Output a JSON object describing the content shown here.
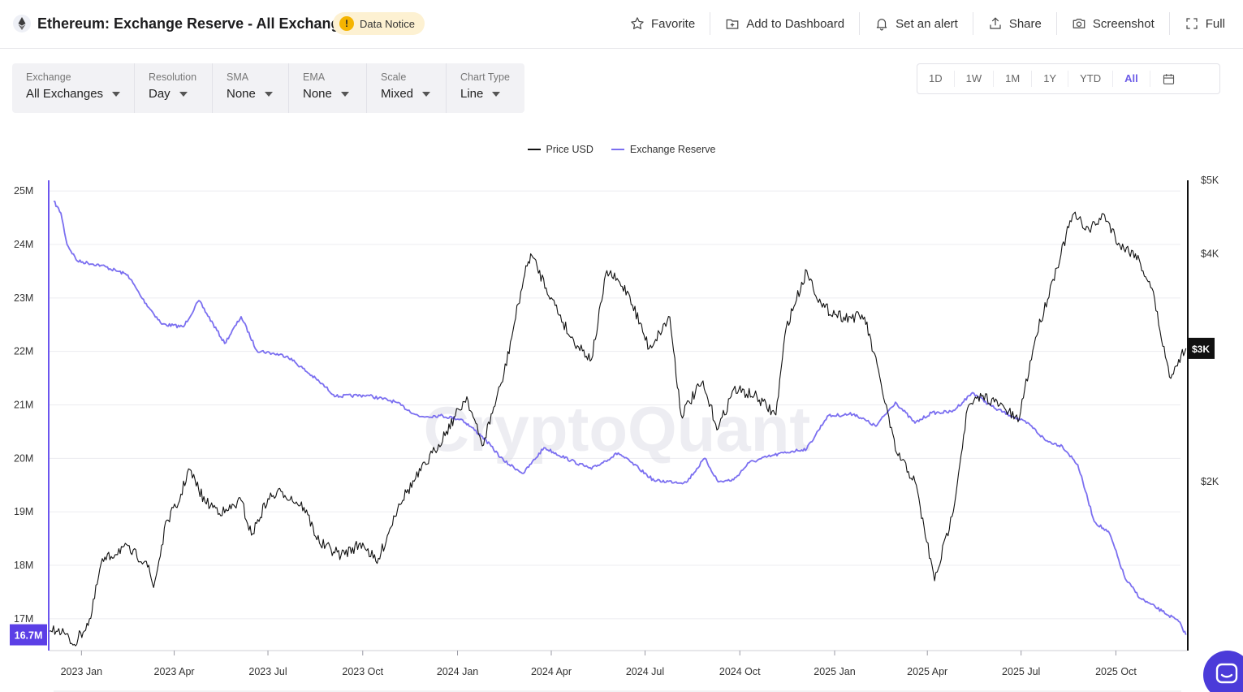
{
  "header": {
    "title": "Ethereum: Exchange Reserve - All Exchanges",
    "notice": "Data Notice",
    "notice_icon": "!",
    "actions": {
      "favorite": "Favorite",
      "add_to_dashboard": "Add to Dashboard",
      "set_alert": "Set an alert",
      "share": "Share",
      "screenshot": "Screenshot",
      "full": "Full"
    }
  },
  "controls": [
    {
      "label": "Exchange",
      "value": "All Exchanges"
    },
    {
      "label": "Resolution",
      "value": "Day"
    },
    {
      "label": "SMA",
      "value": "None"
    },
    {
      "label": "EMA",
      "value": "None"
    },
    {
      "label": "Scale",
      "value": "Mixed"
    },
    {
      "label": "Chart Type",
      "value": "Line"
    }
  ],
  "ranges": [
    "1D",
    "1W",
    "1M",
    "1Y",
    "YTD",
    "All"
  ],
  "active_range": "All",
  "watermark": "CryptoQuant",
  "colors": {
    "price": "#111111",
    "reserve": "#7b6ff0",
    "reserve_badge": "#5b3fe6",
    "price_badge": "#111111"
  },
  "chart_data": {
    "type": "line",
    "x_ticks": [
      "2023 Jan",
      "2023 Apr",
      "2023 Jul",
      "2023 Oct",
      "2024 Jan",
      "2024 Apr",
      "2024 Jul",
      "2024 Oct",
      "2025 Jan",
      "2025 Apr",
      "2025 Jul",
      "2025 Oct"
    ],
    "x_tick_dates": [
      "2023-01-01",
      "2023-04-01",
      "2023-07-01",
      "2023-10-01",
      "2024-01-01",
      "2024-04-01",
      "2024-07-01",
      "2024-10-01",
      "2025-01-01",
      "2025-04-01",
      "2025-07-01",
      "2025-10-01"
    ],
    "x_range": [
      "2022-12-01",
      "2025-12-09"
    ],
    "legend": [
      "Price USD",
      "Exchange Reserve"
    ],
    "legend_position": "top-center",
    "left_axis": {
      "ticks": [
        "25M",
        "24M",
        "23M",
        "22M",
        "21M",
        "20M",
        "19M",
        "18M",
        "17M"
      ],
      "tick_values": [
        25000000,
        24000000,
        23000000,
        22000000,
        21000000,
        20000000,
        19000000,
        18000000,
        17000000
      ],
      "range": [
        16420000,
        25200000
      ],
      "current_label": "16.7M",
      "current_value": 16700000
    },
    "right_axis": {
      "scale": "log",
      "ticks": [
        "$5K",
        "$4K",
        "$2K"
      ],
      "tick_values": [
        5000,
        4000,
        2000
      ],
      "range": [
        1200,
        5000
      ],
      "current_label": "$3K",
      "current_value": 3000
    },
    "grid": true,
    "series": [
      {
        "name": "Exchange Reserve",
        "axis": "left",
        "color": "#7b6ff0",
        "points": [
          [
            "2022-12-05",
            24810000
          ],
          [
            "2022-12-12",
            24590000
          ],
          [
            "2022-12-18",
            24000000
          ],
          [
            "2022-12-28",
            23690000
          ],
          [
            "2023-01-20",
            23610000
          ],
          [
            "2023-02-15",
            23430000
          ],
          [
            "2023-03-01",
            22990000
          ],
          [
            "2023-03-20",
            22510000
          ],
          [
            "2023-04-10",
            22460000
          ],
          [
            "2023-04-25",
            22950000
          ],
          [
            "2023-05-20",
            22150000
          ],
          [
            "2023-06-05",
            22650000
          ],
          [
            "2023-06-20",
            22020000
          ],
          [
            "2023-07-20",
            21910000
          ],
          [
            "2023-08-20",
            21430000
          ],
          [
            "2023-09-05",
            21160000
          ],
          [
            "2023-10-05",
            21180000
          ],
          [
            "2023-11-01",
            21060000
          ],
          [
            "2023-11-25",
            20780000
          ],
          [
            "2023-12-15",
            20800000
          ],
          [
            "2024-01-05",
            20730000
          ],
          [
            "2024-01-25",
            20410000
          ],
          [
            "2024-02-15",
            19950000
          ],
          [
            "2024-03-05",
            19720000
          ],
          [
            "2024-03-25",
            20200000
          ],
          [
            "2024-04-20",
            19960000
          ],
          [
            "2024-05-10",
            19800000
          ],
          [
            "2024-06-05",
            20100000
          ],
          [
            "2024-06-25",
            19810000
          ],
          [
            "2024-07-10",
            19580000
          ],
          [
            "2024-08-10",
            19550000
          ],
          [
            "2024-08-28",
            20000000
          ],
          [
            "2024-09-10",
            19560000
          ],
          [
            "2024-09-25",
            19600000
          ],
          [
            "2024-10-10",
            19920000
          ],
          [
            "2024-11-01",
            20050000
          ],
          [
            "2024-11-20",
            20130000
          ],
          [
            "2024-12-05",
            20180000
          ],
          [
            "2024-12-25",
            20790000
          ],
          [
            "2025-01-20",
            20830000
          ],
          [
            "2025-02-10",
            20600000
          ],
          [
            "2025-03-01",
            21050000
          ],
          [
            "2025-03-20",
            20660000
          ],
          [
            "2025-04-05",
            20850000
          ],
          [
            "2025-04-25",
            20870000
          ],
          [
            "2025-05-15",
            21230000
          ],
          [
            "2025-06-05",
            20940000
          ],
          [
            "2025-06-25",
            20770000
          ],
          [
            "2025-07-10",
            20620000
          ],
          [
            "2025-07-25",
            20330000
          ],
          [
            "2025-08-10",
            20230000
          ],
          [
            "2025-08-25",
            19880000
          ],
          [
            "2025-09-10",
            18820000
          ],
          [
            "2025-09-25",
            18590000
          ],
          [
            "2025-10-10",
            17750000
          ],
          [
            "2025-10-25",
            17380000
          ],
          [
            "2025-11-15",
            17140000
          ],
          [
            "2025-12-01",
            16950000
          ],
          [
            "2025-12-08",
            16700000
          ]
        ]
      },
      {
        "name": "Price USD",
        "axis": "right",
        "color": "#111111",
        "points": [
          [
            "2022-12-01",
            1270
          ],
          [
            "2022-12-10",
            1280
          ],
          [
            "2022-12-25",
            1220
          ],
          [
            "2023-01-10",
            1320
          ],
          [
            "2023-01-20",
            1560
          ],
          [
            "2023-02-10",
            1640
          ],
          [
            "2023-03-05",
            1570
          ],
          [
            "2023-03-12",
            1450
          ],
          [
            "2023-03-25",
            1780
          ],
          [
            "2023-04-05",
            1870
          ],
          [
            "2023-04-15",
            2080
          ],
          [
            "2023-05-01",
            1880
          ],
          [
            "2023-05-20",
            1820
          ],
          [
            "2023-06-05",
            1890
          ],
          [
            "2023-06-15",
            1700
          ],
          [
            "2023-07-01",
            1900
          ],
          [
            "2023-07-15",
            1940
          ],
          [
            "2023-08-05",
            1850
          ],
          [
            "2023-08-20",
            1660
          ],
          [
            "2023-09-10",
            1600
          ],
          [
            "2023-10-01",
            1660
          ],
          [
            "2023-10-15",
            1560
          ],
          [
            "2023-11-05",
            1870
          ],
          [
            "2023-12-10",
            2200
          ],
          [
            "2024-01-10",
            2590
          ],
          [
            "2024-01-25",
            2230
          ],
          [
            "2024-02-15",
            2770
          ],
          [
            "2024-03-05",
            3700
          ],
          [
            "2024-03-12",
            4000
          ],
          [
            "2024-04-01",
            3500
          ],
          [
            "2024-04-20",
            3100
          ],
          [
            "2024-05-10",
            2900
          ],
          [
            "2024-05-25",
            3800
          ],
          [
            "2024-06-15",
            3550
          ],
          [
            "2024-07-05",
            3000
          ],
          [
            "2024-07-25",
            3300
          ],
          [
            "2024-08-05",
            2450
          ],
          [
            "2024-08-25",
            2700
          ],
          [
            "2024-09-10",
            2350
          ],
          [
            "2024-09-25",
            2650
          ],
          [
            "2024-10-15",
            2600
          ],
          [
            "2024-11-05",
            2450
          ],
          [
            "2024-11-15",
            3200
          ],
          [
            "2024-12-05",
            3800
          ],
          [
            "2024-12-20",
            3400
          ],
          [
            "2025-01-10",
            3300
          ],
          [
            "2025-01-30",
            3300
          ],
          [
            "2025-02-15",
            2700
          ],
          [
            "2025-03-01",
            2200
          ],
          [
            "2025-03-20",
            2000
          ],
          [
            "2025-04-08",
            1480
          ],
          [
            "2025-04-25",
            1800
          ],
          [
            "2025-05-10",
            2500
          ],
          [
            "2025-05-25",
            2600
          ],
          [
            "2025-06-15",
            2500
          ],
          [
            "2025-06-28",
            2400
          ],
          [
            "2025-07-15",
            3100
          ],
          [
            "2025-08-01",
            3700
          ],
          [
            "2025-08-20",
            4500
          ],
          [
            "2025-09-05",
            4300
          ],
          [
            "2025-09-20",
            4500
          ],
          [
            "2025-10-05",
            4100
          ],
          [
            "2025-10-20",
            4000
          ],
          [
            "2025-11-05",
            3600
          ],
          [
            "2025-11-22",
            2750
          ],
          [
            "2025-12-01",
            2900
          ],
          [
            "2025-12-08",
            3000
          ]
        ]
      }
    ]
  }
}
